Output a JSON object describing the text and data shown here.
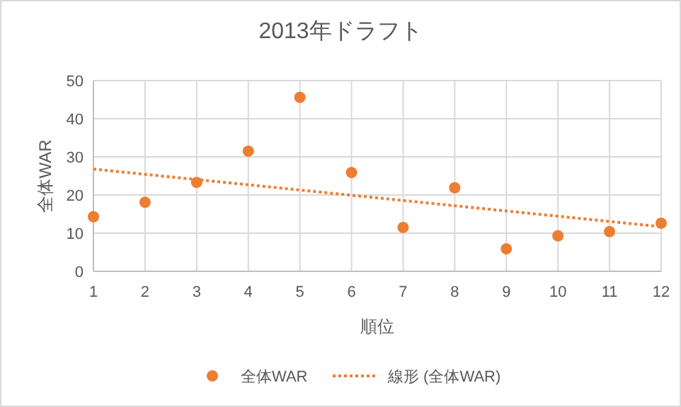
{
  "chart_data": {
    "type": "scatter",
    "title": "2013年ドラフト",
    "xlabel": "順位",
    "ylabel": "全体WAR",
    "xlim": [
      1,
      12
    ],
    "xticks": [
      1,
      2,
      3,
      4,
      5,
      6,
      7,
      8,
      9,
      10,
      11,
      12
    ],
    "ylim": [
      0,
      50
    ],
    "yticks": [
      0,
      10,
      20,
      30,
      40,
      50
    ],
    "grid": true,
    "legend": "bottom",
    "series": [
      {
        "name": "全体WAR",
        "color": "#ed7d31",
        "marker": "circle",
        "x": [
          1,
          2,
          3,
          4,
          5,
          6,
          7,
          8,
          9,
          10,
          11,
          12
        ],
        "values": [
          14.3,
          18.1,
          23.3,
          31.5,
          45.6,
          25.9,
          11.5,
          21.9,
          5.9,
          9.3,
          10.4,
          12.6
        ]
      },
      {
        "name": "線形 (全体WAR)",
        "type": "line",
        "color": "#ed7d31",
        "line_style": "dotted",
        "marker": "none",
        "x": [
          1,
          12
        ],
        "values": [
          26.8,
          11.7
        ]
      }
    ]
  }
}
